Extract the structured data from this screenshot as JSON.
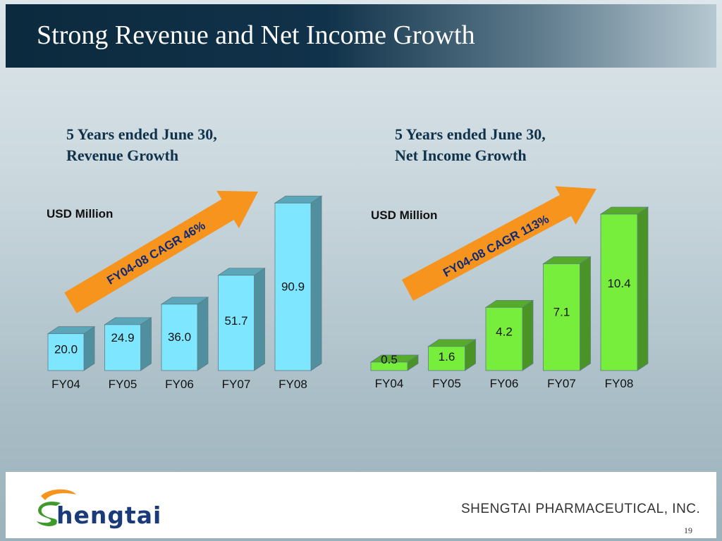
{
  "title": "Strong Revenue and Net Income Growth",
  "charts": [
    {
      "subtitle_line1": "5 Years ended June 30,",
      "subtitle_line2": "Revenue Growth",
      "unit": "USD  Million",
      "cagr_label": "FY04-08 CAGR 46%"
    },
    {
      "subtitle_line1": "5 Years ended June 30,",
      "subtitle_line2": "Net Income Growth",
      "unit": "USD  Million",
      "cagr_label": "FY04-08 CAGR 113%"
    }
  ],
  "chart_data": [
    {
      "type": "bar",
      "title": "5 Years ended June 30, Revenue Growth",
      "ylabel": "USD  Million",
      "xlabel": "",
      "categories": [
        "FY04",
        "FY05",
        "FY06",
        "FY07",
        "FY08"
      ],
      "values": [
        20.0,
        24.9,
        36.0,
        51.7,
        90.9
      ],
      "value_labels": [
        "20.0",
        "24.9",
        "36.0",
        "51.7",
        "90.9"
      ],
      "ylim": [
        0,
        91
      ],
      "bar_color": "#7fe6ff",
      "annotation": "FY04-08 CAGR 46%",
      "grid": false
    },
    {
      "type": "bar",
      "title": "5 Years ended June 30, Net Income Growth",
      "ylabel": "USD  Million",
      "xlabel": "",
      "categories": [
        "FY04",
        "FY05",
        "FY06",
        "FY07",
        "FY08"
      ],
      "values": [
        0.5,
        1.6,
        4.2,
        7.1,
        10.4
      ],
      "value_labels": [
        "0.5",
        "1.6",
        "4.2",
        "7.1",
        "10.4"
      ],
      "ylim": [
        0,
        10.4
      ],
      "bar_color": "#77ee3b",
      "annotation": "FY04-08 CAGR 113%",
      "grid": false
    }
  ],
  "colors": {
    "title_bar": "#0c2a3e",
    "arrow": "#f7941d",
    "revenue_bar": "#7fe6ff",
    "income_bar": "#77ee3b"
  },
  "footer": {
    "logo_text": "hengtai",
    "company": "SHENGTAI PHARMACEUTICAL, INC.",
    "page_number": "19"
  }
}
